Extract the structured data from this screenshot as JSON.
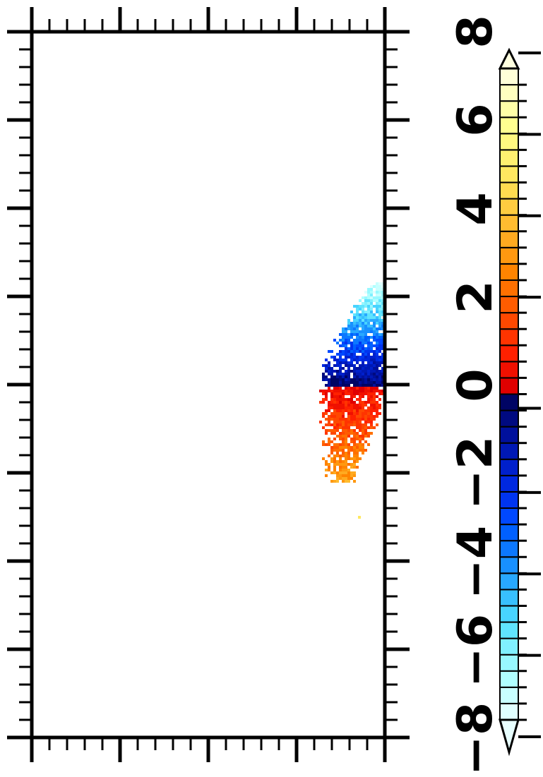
{
  "chart_data": {
    "type": "heatmap",
    "title": "",
    "xlabel": "",
    "ylabel": "",
    "grid": false,
    "legend": "colorbar-right",
    "colorbar": {
      "range": [
        -8,
        8
      ],
      "interval": 0.4,
      "extend": "both",
      "tick_labels": [
        "8",
        "6",
        "4",
        "2",
        "0",
        "−2",
        "−4",
        "−6",
        "−8"
      ],
      "tick_values": [
        8,
        6,
        4,
        2,
        0,
        -2,
        -4,
        -6,
        -8
      ],
      "colors_low_to_high": [
        "#e0ffff",
        "#c8ffff",
        "#b0ffff",
        "#98f8ff",
        "#80f0ff",
        "#60e4ff",
        "#48d4ff",
        "#38c0ff",
        "#28a8ff",
        "#1890ff",
        "#0c78ff",
        "#0060ff",
        "#0048ff",
        "#0034f0",
        "#0028e0",
        "#0020cc",
        "#0018b4",
        "#00109c",
        "#000a80",
        "#000464",
        "#e00000",
        "#f01000",
        "#ff2000",
        "#ff3400",
        "#ff4800",
        "#ff5c00",
        "#ff7000",
        "#ff8400",
        "#ff9810",
        "#ffaa20",
        "#ffbc30",
        "#ffcc40",
        "#ffdc50",
        "#ffe860",
        "#fff070",
        "#fff880",
        "#ffff90",
        "#ffffa8",
        "#ffffc0",
        "#ffffd8"
      ],
      "extend_low_color": "#e8ffff",
      "extend_high_color": "#ffffe0"
    },
    "plot_frame": {
      "major_ticks_x": 5,
      "minor_per_major": 4
    },
    "field": {
      "description_values": {
        "north_lobe_range": [
          -8,
          0
        ],
        "south_lobe_range": [
          0,
          4
        ]
      }
    }
  }
}
